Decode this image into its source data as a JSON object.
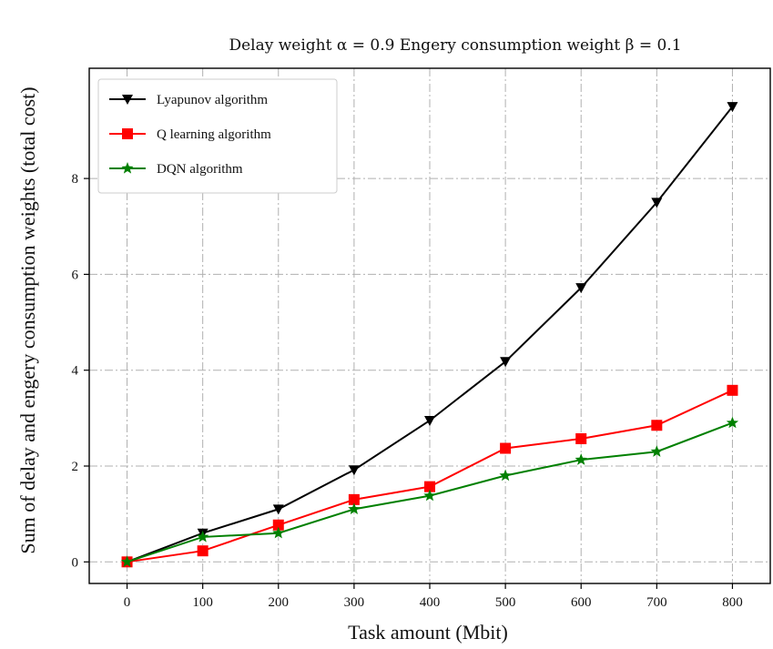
{
  "chart_data": {
    "type": "line",
    "title": "Delay weight α = 0.9 Engery consumption weight β = 0.1",
    "xlabel": "Task amount (Mbit)",
    "ylabel": "Sum of delay and  engery consumption weights (total cost)",
    "x": [
      0,
      100,
      200,
      300,
      400,
      500,
      600,
      700,
      800
    ],
    "xticks": [
      "0",
      "100",
      "200",
      "300",
      "400",
      "500",
      "600",
      "700",
      "800"
    ],
    "yticks": [
      "0",
      "2",
      "4",
      "6",
      "8"
    ],
    "xlim": [
      -50,
      850
    ],
    "ylim": [
      -0.45,
      10.3
    ],
    "grid": true,
    "legend_position": "top-left",
    "series": [
      {
        "name": "Lyapunov algorithm",
        "color": "#000000",
        "marker": "triangle-down",
        "values": [
          0.0,
          0.6,
          1.1,
          1.92,
          2.95,
          4.18,
          5.72,
          7.5,
          9.5
        ]
      },
      {
        "name": "Q learning algorithm",
        "color": "#ff0000",
        "marker": "square",
        "values": [
          0.0,
          0.23,
          0.77,
          1.3,
          1.57,
          2.37,
          2.57,
          2.85,
          3.58
        ]
      },
      {
        "name": "DQN algorithm",
        "color": "#008000",
        "marker": "star",
        "values": [
          0.0,
          0.52,
          0.6,
          1.1,
          1.38,
          1.8,
          2.13,
          2.3,
          2.9
        ]
      }
    ]
  }
}
